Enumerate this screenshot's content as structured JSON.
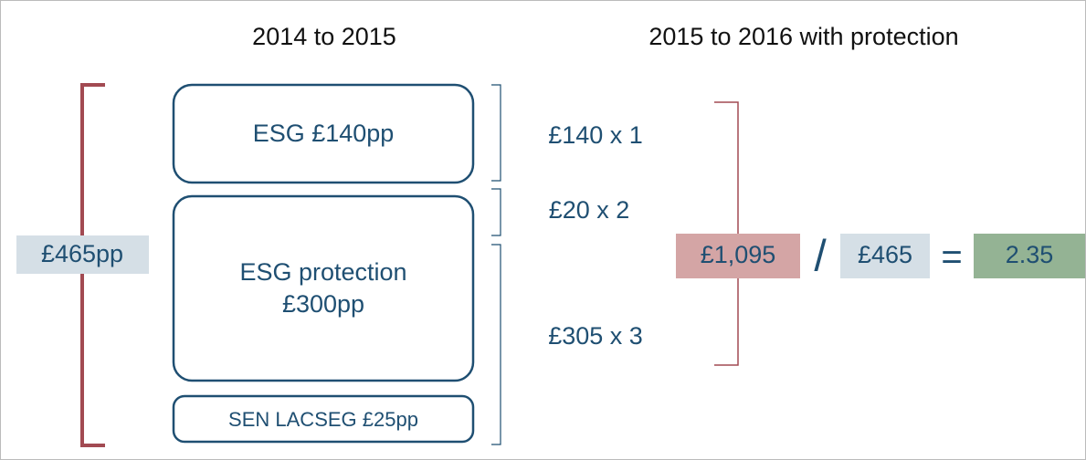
{
  "headings": {
    "left": "2014 to 2015",
    "right": "2015 to 2016 with protection"
  },
  "total": "£465pp",
  "boxes": [
    {
      "lines": [
        "ESG £140pp"
      ]
    },
    {
      "lines": [
        "ESG protection",
        "£300pp"
      ]
    },
    {
      "lines": [
        "SEN LACSEG £25pp"
      ]
    }
  ],
  "multipliers": [
    "£140 x 1",
    "£20 x 2",
    "£305 x 3"
  ],
  "equation": {
    "numerator": "£1,095",
    "operator": "/",
    "denominator": "£465",
    "equals": "=",
    "result": "2.35"
  }
}
